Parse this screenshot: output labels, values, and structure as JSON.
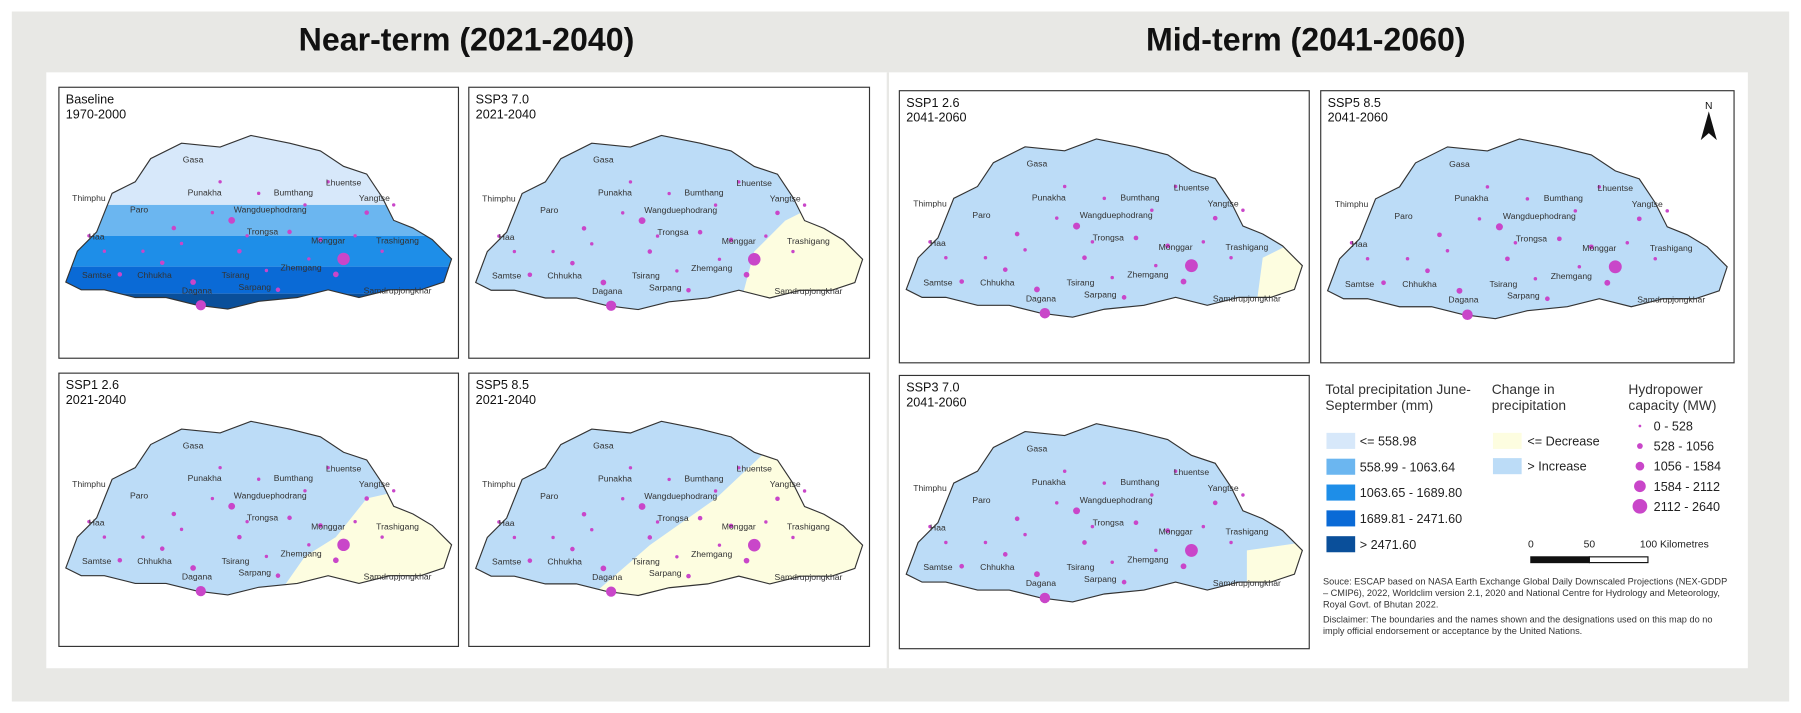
{
  "titles": [
    "Near-term (2021-2040)",
    "Mid-term (2041-2060)"
  ],
  "panels": [
    {
      "name": "Baseline",
      "period": "1970-2000"
    },
    {
      "name": "SSP3 7.0",
      "period": "2021-2040"
    },
    {
      "name": "SSP1 2.6",
      "period": "2021-2040"
    },
    {
      "name": "SSP5 8.5",
      "period": "2021-2040"
    },
    {
      "name": "SSP1 2.6",
      "period": "2041-2060"
    },
    {
      "name": "SSP5 8.5",
      "period": "2041-2060"
    },
    {
      "name": "SSP3 7.0",
      "period": "2041-2060"
    }
  ],
  "districts": [
    "Gasa",
    "Thimphu",
    "Paro",
    "Punakha",
    "Wangduephodrang",
    "Bumthang",
    "Lhuentse",
    "Yangtse",
    "Haa",
    "Trongsa",
    "Monggar",
    "Trashigang",
    "Samtse",
    "Chhukha",
    "Tsirang",
    "Sarpang",
    "Dagana",
    "Zhemgang",
    "Samdrupjongkhar"
  ],
  "north": "N",
  "legend": {
    "precipitation": {
      "title": "Total precipitation June-Septermber (mm)",
      "classes": [
        "<= 558.98",
        "558.99 - 1063.64",
        "1063.65 - 1689.80",
        "1689.81 - 2471.60",
        "> 2471.60"
      ],
      "colors": [
        "#d7e8fa",
        "#6bb6f0",
        "#1e8ee8",
        "#0a6ad6",
        "#0a4f9a"
      ]
    },
    "change": {
      "title": "Change in precipitation",
      "classes": [
        "<= Decrease",
        "> Increase"
      ],
      "colors": [
        "#fdfde0",
        "#bcdcf7"
      ]
    },
    "hydropower": {
      "title": "Hydropower capacity (MW)",
      "classes": [
        "0 - 528",
        "528 - 1056",
        "1056 - 1584",
        "1584 - 2112",
        "2112 - 2640"
      ],
      "color": "#c946c9"
    }
  },
  "scale_bar": [
    "0",
    "50",
    "100 Kilometres"
  ],
  "source": "Souce: ESCAP based on NASA Earth Exchange Global Daily Downscaled Projections (NEX-GDDP – CMIP6), 2022, Worldclim version 2.1, 2020 and National Centre for Hydrology and Meteorology, Royal Govt. of Bhutan 2022.",
  "disclaimer": "Disclaimer: The boundaries and the names shown and the designations used on this map do no imply official endorsement or acceptance by the United Nations."
}
